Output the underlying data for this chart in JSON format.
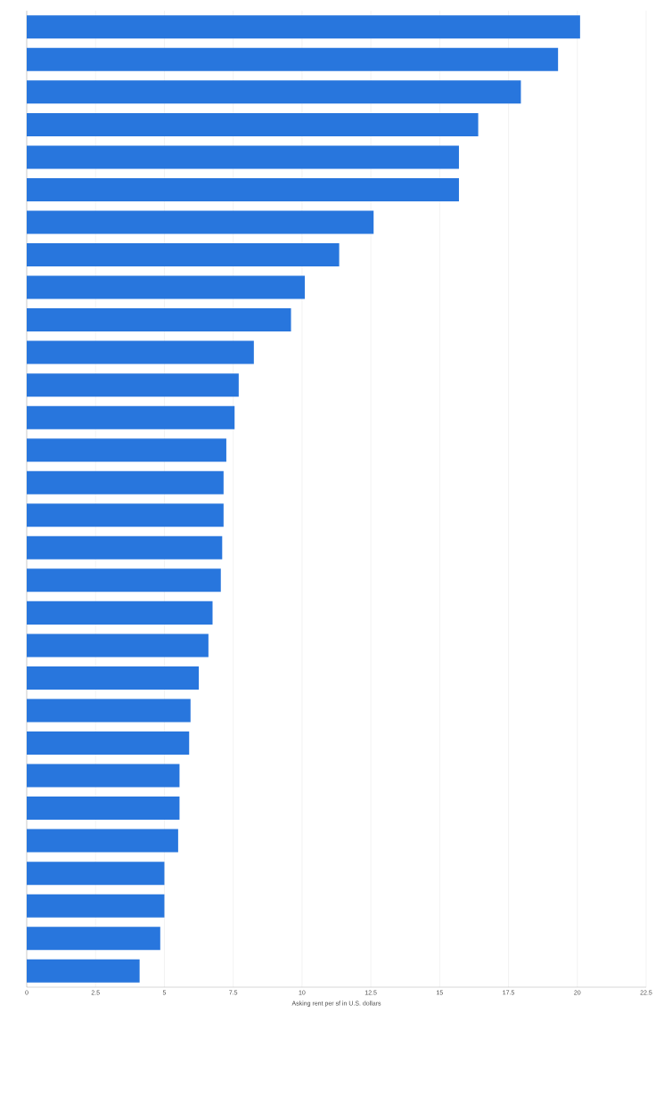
{
  "chart_data": {
    "type": "bar",
    "orientation": "horizontal",
    "xlabel": "Asking rent per sf in U.S. dollars",
    "categories": [
      null,
      null,
      null,
      null,
      null,
      null,
      null,
      null,
      null,
      null,
      null,
      null,
      null,
      null,
      null,
      null,
      null,
      null,
      null,
      null,
      null,
      null,
      null,
      null,
      null,
      null,
      null,
      null,
      null,
      null
    ],
    "values": [
      20.1,
      19.3,
      17.95,
      16.4,
      15.7,
      15.7,
      12.6,
      11.35,
      10.1,
      9.6,
      8.25,
      7.7,
      7.55,
      7.25,
      7.15,
      7.15,
      7.1,
      7.05,
      6.75,
      6.6,
      6.25,
      5.95,
      5.9,
      5.55,
      5.55,
      5.5,
      5.0,
      5.0,
      4.85,
      4.1
    ],
    "color": "#2876dd",
    "xlim": [
      0,
      22.5
    ],
    "xticks": [
      0,
      2.5,
      5,
      7.5,
      10,
      12.5,
      15,
      17.5,
      20,
      22.5
    ],
    "grid": "x"
  }
}
